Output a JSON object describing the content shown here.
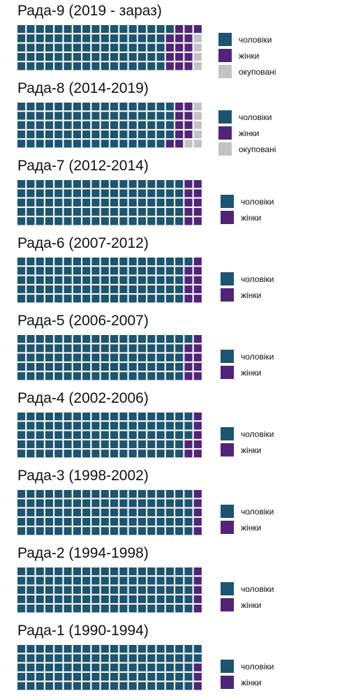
{
  "colors": {
    "men": "#1c5570",
    "women": "#51247a",
    "occupied": "#c3c3c3"
  },
  "chart_data": [
    {
      "type": "waffle",
      "title": "Рада-9 (2019 - зараз)",
      "series": [
        {
          "name": "чоловіки",
          "value": 81,
          "color": "#1c5570"
        },
        {
          "name": "жінки",
          "value": 15,
          "color": "#51247a"
        },
        {
          "name": "окуповані",
          "value": 4,
          "color": "#c3c3c3"
        }
      ]
    },
    {
      "type": "waffle",
      "title": "Рада-8 (2014-2019)",
      "series": [
        {
          "name": "чоловіки",
          "value": 84,
          "color": "#1c5570"
        },
        {
          "name": "жінки",
          "value": 10,
          "color": "#51247a"
        },
        {
          "name": "окуповані",
          "value": 6,
          "color": "#c3c3c3"
        }
      ]
    },
    {
      "type": "waffle",
      "title": "Рада-7 (2012-2014)",
      "series": [
        {
          "name": "чоловіки",
          "value": 90,
          "color": "#1c5570"
        },
        {
          "name": "жінки",
          "value": 10,
          "color": "#51247a"
        }
      ]
    },
    {
      "type": "waffle",
      "title": "Рада-6 (2007-2012)",
      "series": [
        {
          "name": "чоловіки",
          "value": 91,
          "color": "#1c5570"
        },
        {
          "name": "жінки",
          "value": 9,
          "color": "#51247a"
        }
      ]
    },
    {
      "type": "waffle",
      "title": "Рада-5 (2006-2007)",
      "series": [
        {
          "name": "чоловіки",
          "value": 91,
          "color": "#1c5570"
        },
        {
          "name": "жінки",
          "value": 9,
          "color": "#51247a"
        }
      ]
    },
    {
      "type": "waffle",
      "title": "Рада-4 (2002-2006)",
      "series": [
        {
          "name": "чоловіки",
          "value": 93,
          "color": "#1c5570"
        },
        {
          "name": "жінки",
          "value": 7,
          "color": "#51247a"
        }
      ]
    },
    {
      "type": "waffle",
      "title": "Рада-3 (1998-2002)",
      "series": [
        {
          "name": "чоловіки",
          "value": 95,
          "color": "#1c5570"
        },
        {
          "name": "жінки",
          "value": 5,
          "color": "#51247a"
        }
      ]
    },
    {
      "type": "waffle",
      "title": "Рада-2 (1994-1998)",
      "series": [
        {
          "name": "чоловіки",
          "value": 95,
          "color": "#1c5570"
        },
        {
          "name": "жінки",
          "value": 5,
          "color": "#51247a"
        }
      ]
    },
    {
      "type": "waffle",
      "title": "Рада-1 (1990-1994)",
      "series": [
        {
          "name": "чоловіки",
          "value": 97,
          "color": "#1c5570"
        },
        {
          "name": "жінки",
          "value": 3,
          "color": "#51247a"
        }
      ]
    }
  ]
}
